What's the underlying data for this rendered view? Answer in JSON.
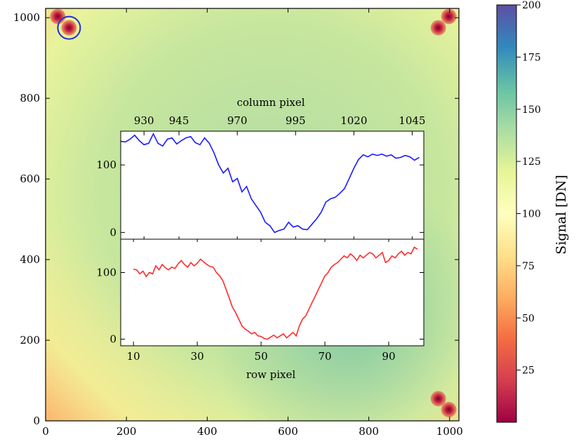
{
  "chart_data": [
    {
      "type": "heatmap",
      "description_axes": "detector image",
      "xlim": [
        0,
        1023
      ],
      "ylim": [
        0,
        1023
      ],
      "x_ticks": [
        "0",
        "200",
        "400",
        "600",
        "800",
        "1000"
      ],
      "y_ticks": [
        "0",
        "200",
        "400",
        "600",
        "800",
        "1000"
      ],
      "colormap": "Spectral",
      "colorbar": {
        "label": "Signal [DN]",
        "range": [
          0,
          200
        ],
        "ticks": [
          "25",
          "50",
          "75",
          "100",
          "125",
          "150",
          "175",
          "200"
        ]
      },
      "bright_spots": [
        {
          "x": 30,
          "y": 1003
        },
        {
          "x": 58,
          "y": 975
        },
        {
          "x": 972,
          "y": 975
        },
        {
          "x": 998,
          "y": 1003
        },
        {
          "x": 972,
          "y": 55
        },
        {
          "x": 998,
          "y": 28
        }
      ],
      "highlighted_spot": {
        "x": 58,
        "y": 975,
        "marker_color": "#1f2fd6"
      }
    },
    {
      "type": "line",
      "xlabel": "column pixel",
      "x_ticks": [
        "930",
        "945",
        "970",
        "995",
        "1020",
        "1045"
      ],
      "y_ticks": [
        "0",
        "100"
      ],
      "ylim": [
        -10,
        150
      ],
      "series": [
        {
          "color": "#1a1aff",
          "x": [
            920,
            922,
            924,
            926,
            928,
            930,
            932,
            934,
            936,
            938,
            940,
            942,
            944,
            946,
            948,
            950,
            952,
            954,
            956,
            958,
            960,
            962,
            964,
            966,
            968,
            970,
            972,
            974,
            976,
            978,
            980,
            982,
            984,
            986,
            988,
            990,
            992,
            994,
            996,
            998,
            1000,
            1002,
            1004,
            1006,
            1008,
            1010,
            1012,
            1014,
            1016,
            1018,
            1020,
            1022,
            1024,
            1026,
            1028,
            1030,
            1032,
            1034,
            1036,
            1038,
            1040,
            1042,
            1044,
            1046,
            1048
          ],
          "values": [
            135,
            134,
            138,
            144,
            136,
            130,
            132,
            146,
            132,
            128,
            138,
            140,
            131,
            136,
            140,
            142,
            133,
            130,
            140,
            132,
            118,
            100,
            88,
            95,
            75,
            80,
            60,
            68,
            50,
            40,
            30,
            15,
            10,
            0,
            3,
            5,
            15,
            8,
            10,
            5,
            4,
            12,
            20,
            30,
            45,
            50,
            52,
            58,
            65,
            80,
            95,
            108,
            115,
            112,
            116,
            114,
            116,
            113,
            115,
            110,
            111,
            114,
            112,
            107,
            111
          ]
        },
        {
          "color": "#ff2a2a",
          "x": [
            10,
            11,
            12,
            13,
            14,
            15,
            16,
            17,
            18,
            19,
            20,
            21,
            22,
            23,
            24,
            25,
            26,
            27,
            28,
            29,
            30,
            31,
            32,
            33,
            34,
            35,
            36,
            37,
            38,
            39,
            40,
            41,
            42,
            43,
            44,
            45,
            46,
            47,
            48,
            49,
            50,
            51,
            52,
            53,
            54,
            55,
            56,
            57,
            58,
            59,
            60,
            61,
            62,
            63,
            64,
            65,
            66,
            67,
            68,
            69,
            70,
            71,
            72,
            73,
            74,
            75,
            76,
            77,
            78,
            79,
            80,
            81,
            82,
            83,
            84,
            85,
            86,
            87,
            88,
            89,
            90,
            91,
            92,
            93,
            94,
            95,
            96,
            97,
            98,
            99
          ],
          "values": [
            105,
            104,
            98,
            102,
            94,
            100,
            98,
            110,
            104,
            112,
            107,
            104,
            108,
            106,
            113,
            118,
            112,
            108,
            115,
            110,
            114,
            120,
            116,
            112,
            109,
            108,
            100,
            95,
            88,
            75,
            62,
            48,
            40,
            30,
            20,
            15,
            12,
            8,
            10,
            5,
            4,
            1,
            0,
            3,
            6,
            2,
            5,
            8,
            2,
            6,
            10,
            5,
            20,
            30,
            35,
            45,
            55,
            65,
            75,
            85,
            95,
            100,
            108,
            112,
            115,
            120,
            125,
            122,
            128,
            124,
            118,
            126,
            122,
            126,
            130,
            128,
            122,
            126,
            130,
            115,
            118,
            125,
            122,
            128,
            132,
            126,
            130,
            128,
            138,
            135
          ]
        }
      ],
      "series_axis_note": "top axis: column pixel (blue); bottom axis: row pixel (red)"
    },
    {
      "type": "line",
      "xlabel": "row pixel",
      "x_ticks": [
        "10",
        "30",
        "50",
        "70",
        "90"
      ],
      "y_ticks": [
        "0",
        "100"
      ],
      "ylim": [
        -10,
        150
      ]
    }
  ]
}
